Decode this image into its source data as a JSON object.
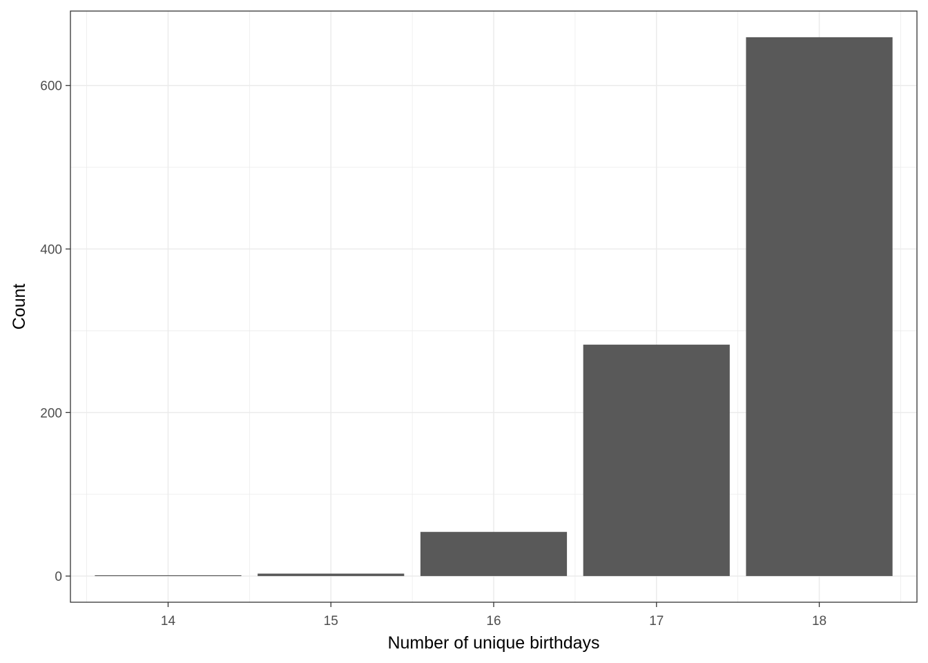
{
  "chart_data": {
    "type": "bar",
    "title": "",
    "xlabel": "Number of unique birthdays",
    "ylabel": "Count",
    "categories": [
      "14",
      "15",
      "16",
      "17",
      "18"
    ],
    "values": [
      1,
      3,
      54,
      283,
      659
    ],
    "ylim": [
      -32,
      691
    ],
    "yticks": [
      0,
      200,
      400,
      600
    ],
    "grid": true,
    "legend": "none",
    "bar_color": "#595959",
    "grid_color": "#ebebeb",
    "panel_border_color": "#333333"
  }
}
